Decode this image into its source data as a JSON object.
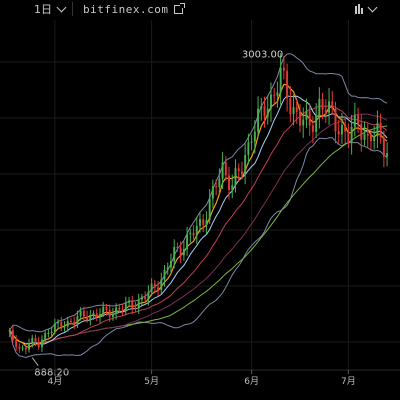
{
  "toolbar": {
    "interval_label": "1日",
    "source_label": "bitfinex.com"
  },
  "colors": {
    "background": "#000000",
    "grid": "#1c1c1c",
    "up": "#4caf50",
    "down": "#e53935",
    "ma_fast": "#f39c12",
    "ma_mid": "#c03c5a",
    "ma_slow": "#7cb342",
    "ma_trend": "#7b2f54",
    "bb": "#7d86a6",
    "ema_light": "#9fd3f5"
  },
  "chart_data": {
    "type": "candlestick",
    "x": [
      "03-18",
      "03-21",
      "03-24",
      "03-27",
      "03-30",
      "04-02",
      "04-05",
      "04-08",
      "04-11",
      "04-14",
      "04-17",
      "04-20",
      "04-23",
      "04-26",
      "04-29",
      "05-02",
      "05-05",
      "05-08",
      "05-11",
      "05-14",
      "05-17",
      "05-20",
      "05-23",
      "05-26",
      "05-29",
      "06-01",
      "06-04",
      "06-07",
      "06-10",
      "06-13",
      "06-16",
      "06-19",
      "06-22",
      "06-25",
      "06-28",
      "07-01",
      "07-04",
      "07-07",
      "07-10",
      "07-13"
    ],
    "close": [
      1050,
      940,
      1000,
      980,
      1090,
      1110,
      1140,
      1170,
      1190,
      1200,
      1210,
      1230,
      1250,
      1280,
      1320,
      1400,
      1480,
      1640,
      1700,
      1780,
      1880,
      2050,
      2250,
      2120,
      2240,
      2500,
      2620,
      2740,
      2900,
      2700,
      2600,
      2530,
      2700,
      2640,
      2550,
      2450,
      2600,
      2420,
      2500,
      2380
    ],
    "annotations": [
      {
        "label": "3003.00",
        "type": "max",
        "at_x": "06-11",
        "value": 3003
      },
      {
        "label": "888.20",
        "type": "min",
        "at_x": "03-25",
        "value": 888.2
      }
    ],
    "xticks": [
      "4月",
      "5月",
      "6月",
      "7月"
    ],
    "xtick_dates": [
      "04-01",
      "05-01",
      "06-01",
      "07-01"
    ],
    "ylim": [
      800,
      3300
    ],
    "grid": true,
    "legend": "none"
  }
}
